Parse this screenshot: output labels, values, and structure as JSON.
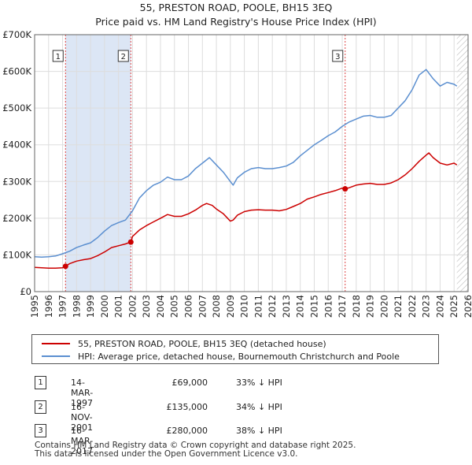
{
  "chart_data": {
    "type": "line",
    "title": "55, PRESTON ROAD, POOLE, BH15 3EQ",
    "subtitle": "Price paid vs. HM Land Registry's House Price Index (HPI)",
    "xlim": [
      1995,
      2026
    ],
    "ylim": [
      0,
      700000
    ],
    "yticks": [
      {
        "value": 0,
        "label": "£0"
      },
      {
        "value": 100000,
        "label": "£100K"
      },
      {
        "value": 200000,
        "label": "£200K"
      },
      {
        "value": 300000,
        "label": "£300K"
      },
      {
        "value": 400000,
        "label": "£400K"
      },
      {
        "value": 500000,
        "label": "£500K"
      },
      {
        "value": 600000,
        "label": "£600K"
      },
      {
        "value": 700000,
        "label": "£700K"
      }
    ],
    "xticks": [
      "1995",
      "1996",
      "1997",
      "1998",
      "1999",
      "2000",
      "2001",
      "2002",
      "2003",
      "2004",
      "2005",
      "2006",
      "2007",
      "2008",
      "2009",
      "2010",
      "2011",
      "2012",
      "2013",
      "2014",
      "2015",
      "2016",
      "2017",
      "2018",
      "2019",
      "2020",
      "2021",
      "2022",
      "2023",
      "2024",
      "2025",
      "2026"
    ],
    "colors": {
      "property": "#cc0000",
      "hpi": "#5b8fd0",
      "shade": "#dce6f5",
      "vline": "#dd4444",
      "hatch": "#bbbbbb"
    },
    "series": [
      {
        "name": "55, PRESTON ROAD, POOLE, BH15 3EQ (detached house)",
        "key": "property",
        "x": [
          1995.0,
          1995.5,
          1996.0,
          1996.5,
          1997.0,
          1997.2,
          1997.5,
          1998.0,
          1998.5,
          1999.0,
          1999.5,
          2000.0,
          2000.5,
          2001.0,
          2001.5,
          2001.88,
          2002.0,
          2002.5,
          2003.0,
          2003.5,
          2004.0,
          2004.5,
          2005.0,
          2005.5,
          2006.0,
          2006.5,
          2007.0,
          2007.3,
          2007.7,
          2008.0,
          2008.5,
          2009.0,
          2009.2,
          2009.5,
          2010.0,
          2010.5,
          2011.0,
          2011.5,
          2012.0,
          2012.5,
          2013.0,
          2013.5,
          2014.0,
          2014.5,
          2015.0,
          2015.5,
          2016.0,
          2016.5,
          2017.0,
          2017.21,
          2017.5,
          2018.0,
          2018.5,
          2019.0,
          2019.5,
          2020.0,
          2020.5,
          2021.0,
          2021.5,
          2022.0,
          2022.5,
          2023.0,
          2023.2,
          2023.5,
          2024.0,
          2024.5,
          2025.0,
          2025.2
        ],
        "y": [
          66000,
          65000,
          64000,
          64000,
          65000,
          69000,
          76000,
          83000,
          87000,
          90000,
          98000,
          108000,
          120000,
          125000,
          130000,
          135000,
          150000,
          168000,
          180000,
          190000,
          200000,
          210000,
          205000,
          205000,
          212000,
          222000,
          235000,
          240000,
          235000,
          225000,
          212000,
          192000,
          195000,
          208000,
          218000,
          222000,
          223000,
          222000,
          222000,
          220000,
          224000,
          232000,
          240000,
          252000,
          258000,
          265000,
          270000,
          275000,
          282000,
          280000,
          283000,
          290000,
          293000,
          295000,
          292000,
          292000,
          296000,
          305000,
          318000,
          335000,
          355000,
          372000,
          378000,
          365000,
          350000,
          345000,
          350000,
          345000
        ]
      },
      {
        "name": "HPI: Average price, detached house, Bournemouth Christchurch and Poole",
        "key": "hpi",
        "x": [
          1995.0,
          1995.5,
          1996.0,
          1996.5,
          1997.0,
          1997.5,
          1998.0,
          1998.5,
          1999.0,
          1999.5,
          2000.0,
          2000.5,
          2001.0,
          2001.5,
          2002.0,
          2002.5,
          2003.0,
          2003.5,
          2004.0,
          2004.5,
          2005.0,
          2005.5,
          2006.0,
          2006.5,
          2007.0,
          2007.5,
          2008.0,
          2008.5,
          2009.0,
          2009.2,
          2009.5,
          2010.0,
          2010.5,
          2011.0,
          2011.5,
          2012.0,
          2012.5,
          2013.0,
          2013.5,
          2014.0,
          2014.5,
          2015.0,
          2015.5,
          2016.0,
          2016.5,
          2017.0,
          2017.5,
          2018.0,
          2018.5,
          2019.0,
          2019.5,
          2020.0,
          2020.5,
          2021.0,
          2021.5,
          2022.0,
          2022.5,
          2023.0,
          2023.5,
          2024.0,
          2024.5,
          2025.0,
          2025.2
        ],
        "y": [
          95000,
          94000,
          95000,
          97000,
          103000,
          110000,
          120000,
          127000,
          133000,
          147000,
          165000,
          180000,
          188000,
          195000,
          220000,
          255000,
          275000,
          290000,
          298000,
          312000,
          305000,
          305000,
          315000,
          335000,
          350000,
          365000,
          345000,
          325000,
          300000,
          290000,
          310000,
          325000,
          335000,
          338000,
          335000,
          335000,
          338000,
          342000,
          352000,
          370000,
          385000,
          400000,
          412000,
          425000,
          435000,
          450000,
          462000,
          470000,
          478000,
          480000,
          475000,
          475000,
          480000,
          500000,
          520000,
          550000,
          590000,
          605000,
          580000,
          560000,
          570000,
          565000,
          560000
        ]
      }
    ],
    "sales": [
      {
        "n": "1",
        "x": 1997.21,
        "y": 69000
      },
      {
        "n": "2",
        "x": 2001.88,
        "y": 135000
      },
      {
        "n": "3",
        "x": 2017.21,
        "y": 280000
      }
    ],
    "shaded_ranges": [
      [
        1997.21,
        2001.88
      ]
    ],
    "hatch_from": 2025.2
  },
  "legend": {
    "property": "55, PRESTON ROAD, POOLE, BH15 3EQ (detached house)",
    "hpi": "HPI: Average price, detached house, Bournemouth Christchurch and Poole"
  },
  "transactions": [
    {
      "n": "1",
      "date": "14-MAR-1997",
      "price": "£69,000",
      "hpi": "33% ↓ HPI"
    },
    {
      "n": "2",
      "date": "16-NOV-2001",
      "price": "£135,000",
      "hpi": "34% ↓ HPI"
    },
    {
      "n": "3",
      "date": "16-MAR-2017",
      "price": "£280,000",
      "hpi": "38% ↓ HPI"
    }
  ],
  "footer": {
    "line1": "Contains HM Land Registry data © Crown copyright and database right 2025.",
    "line2": "This data is licensed under the Open Government Licence v3.0."
  }
}
